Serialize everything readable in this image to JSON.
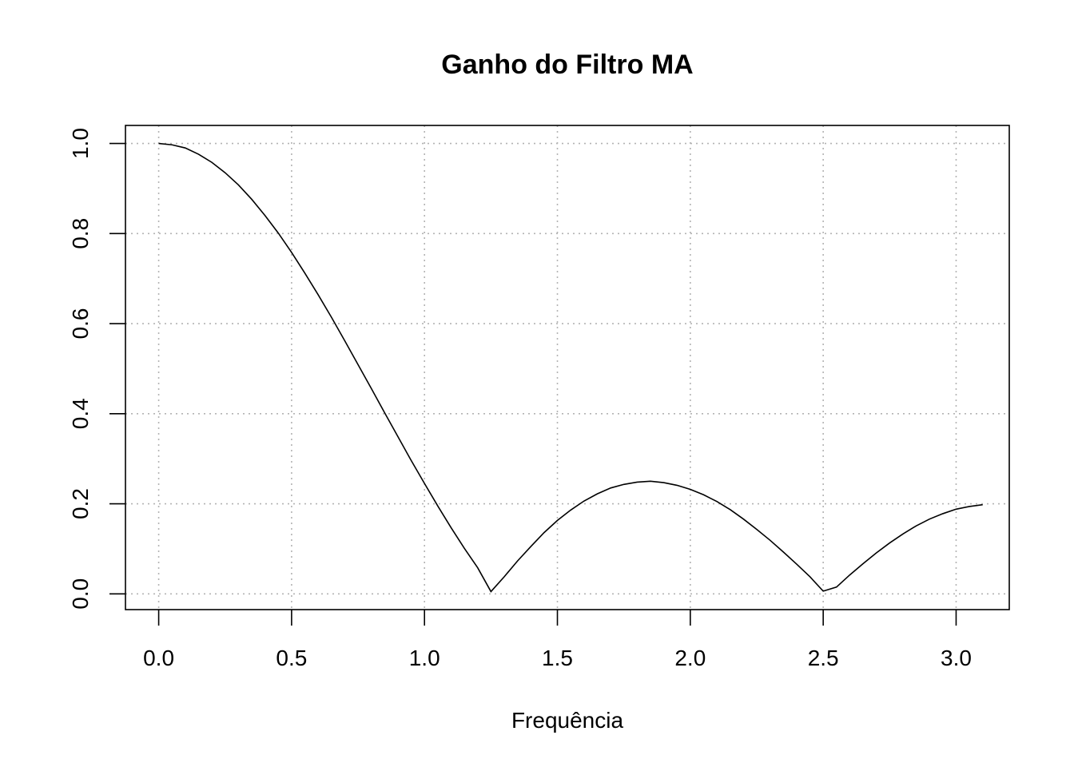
{
  "chart_data": {
    "type": "line",
    "title": "Ganho do Filtro MA",
    "xlabel": "Frequência",
    "ylabel": "",
    "xlim": [
      -0.125,
      3.2
    ],
    "ylim": [
      -0.035,
      1.04
    ],
    "xticks": [
      0.0,
      0.5,
      1.0,
      1.5,
      2.0,
      2.5,
      3.0
    ],
    "xtick_labels": [
      "0.0",
      "0.5",
      "1.0",
      "1.5",
      "2.0",
      "2.5",
      "3.0"
    ],
    "yticks": [
      0.0,
      0.2,
      0.4,
      0.6,
      0.8,
      1.0
    ],
    "ytick_labels": [
      "0.0",
      "0.2",
      "0.4",
      "0.6",
      "0.8",
      "1.0"
    ],
    "grid": true,
    "series": [
      {
        "x": [
          0.0,
          0.05,
          0.1,
          0.15,
          0.2,
          0.25,
          0.3,
          0.35,
          0.4,
          0.45,
          0.5,
          0.55,
          0.6,
          0.65,
          0.7,
          0.75,
          0.8,
          0.85,
          0.9,
          0.95,
          1.0,
          1.05,
          1.1,
          1.15,
          1.2,
          1.25,
          1.3,
          1.35,
          1.4,
          1.45,
          1.5,
          1.55,
          1.6,
          1.65,
          1.7,
          1.75,
          1.8,
          1.85,
          1.9,
          1.95,
          2.0,
          2.05,
          2.1,
          2.15,
          2.2,
          2.25,
          2.3,
          2.35,
          2.4,
          2.45,
          2.5,
          2.55,
          2.6,
          2.65,
          2.7,
          2.75,
          2.8,
          2.85,
          2.9,
          2.95,
          3.0,
          3.05,
          3.1
        ],
        "y": [
          1.0,
          0.997,
          0.99,
          0.976,
          0.958,
          0.935,
          0.908,
          0.876,
          0.84,
          0.801,
          0.758,
          0.712,
          0.664,
          0.614,
          0.562,
          0.509,
          0.456,
          0.402,
          0.349,
          0.296,
          0.245,
          0.195,
          0.147,
          0.101,
          0.058,
          0.005,
          0.038,
          0.073,
          0.105,
          0.136,
          0.163,
          0.186,
          0.206,
          0.222,
          0.235,
          0.243,
          0.248,
          0.25,
          0.247,
          0.241,
          0.232,
          0.22,
          0.205,
          0.187,
          0.166,
          0.143,
          0.119,
          0.093,
          0.066,
          0.038,
          0.006,
          0.015,
          0.042,
          0.067,
          0.091,
          0.113,
          0.133,
          0.151,
          0.166,
          0.178,
          0.188,
          0.194,
          0.198
        ]
      }
    ]
  }
}
